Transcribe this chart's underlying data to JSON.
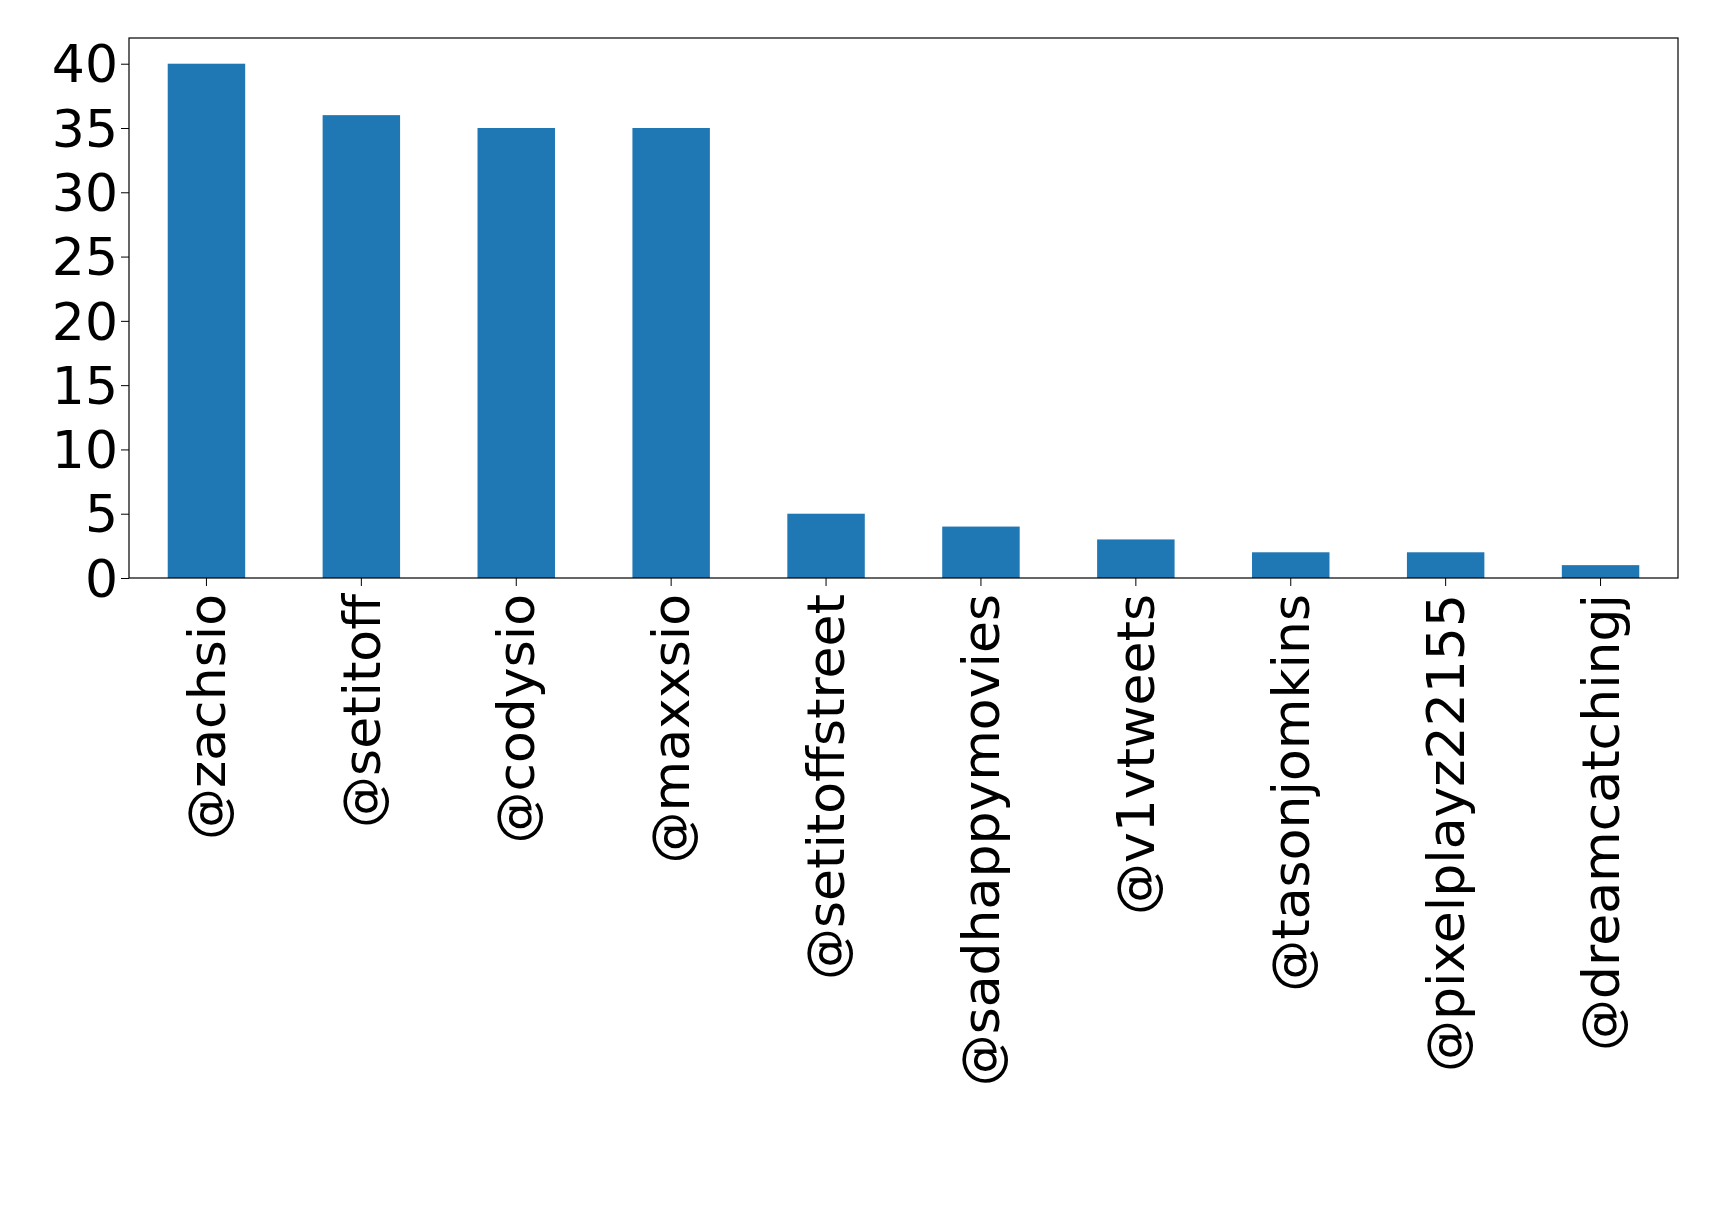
{
  "chart_data": {
    "type": "bar",
    "categories": [
      "@zachsio",
      "@setitoff",
      "@codysio",
      "@maxxsio",
      "@setitoffstreet",
      "@sadhappymovies",
      "@v1vtweets",
      "@tasonjomkins",
      "@pixelplayz22155",
      "@dreamcatchingj"
    ],
    "values": [
      40,
      36,
      35,
      35,
      5,
      4,
      3,
      2,
      2,
      1
    ],
    "color": "#1f77b4",
    "ylim": [
      0,
      42
    ],
    "yticks": [
      0,
      5,
      10,
      15,
      20,
      25,
      30,
      35,
      40
    ]
  }
}
